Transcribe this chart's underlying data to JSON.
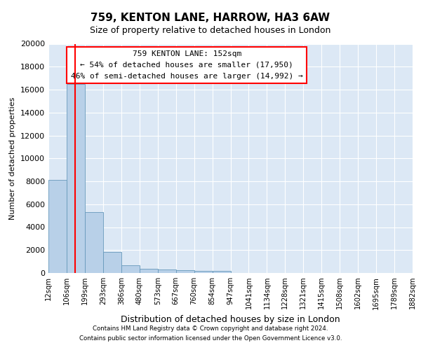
{
  "title": "759, KENTON LANE, HARROW, HA3 6AW",
  "subtitle": "Size of property relative to detached houses in London",
  "xlabel": "Distribution of detached houses by size in London",
  "ylabel": "Number of detached properties",
  "bin_labels": [
    "12sqm",
    "106sqm",
    "199sqm",
    "293sqm",
    "386sqm",
    "480sqm",
    "573sqm",
    "667sqm",
    "760sqm",
    "854sqm",
    "947sqm",
    "1041sqm",
    "1134sqm",
    "1228sqm",
    "1321sqm",
    "1415sqm",
    "1508sqm",
    "1602sqm",
    "1695sqm",
    "1789sqm",
    "1882sqm"
  ],
  "bar_heights": [
    8100,
    16500,
    5300,
    1850,
    700,
    370,
    280,
    220,
    180,
    160,
    0,
    0,
    0,
    0,
    0,
    0,
    0,
    0,
    0,
    0
  ],
  "bar_color": "#b8d0e8",
  "bar_edge_color": "#6699bb",
  "background_color": "#dce8f5",
  "grid_color": "#ffffff",
  "red_line_x": 1.46,
  "annotation_line1": "759 KENTON LANE: 152sqm",
  "annotation_line2": "← 54% of detached houses are smaller (17,950)",
  "annotation_line3": "46% of semi-detached houses are larger (14,992) →",
  "ylim": [
    0,
    20000
  ],
  "yticks": [
    0,
    2000,
    4000,
    6000,
    8000,
    10000,
    12000,
    14000,
    16000,
    18000,
    20000
  ],
  "footer_line1": "Contains HM Land Registry data © Crown copyright and database right 2024.",
  "footer_line2": "Contains public sector information licensed under the Open Government Licence v3.0."
}
